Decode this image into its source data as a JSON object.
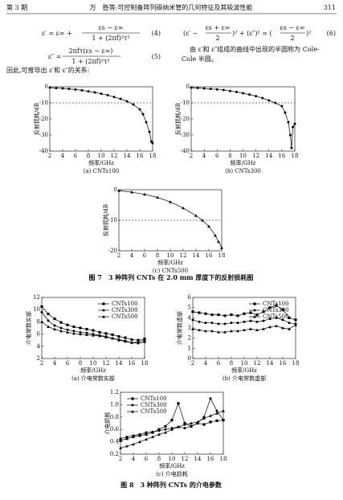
{
  "header": {
    "issue": "第 3 期",
    "title": "万　胜等:可控制备阵列碳纳米管的几何特征及其吸波性能",
    "page": "311"
  },
  "equations": [
    {
      "lhs": "ε′ = ε∞ +",
      "num": "εs − ε∞",
      "den": "1 + (2πf)²τ²",
      "label": "(4)"
    },
    {
      "lhs": "ε″ =",
      "num": "2πfτ(εs − ε∞)",
      "den": "1 + (2πf)²τ²",
      "label": "(5)"
    },
    {
      "open": "(ε′ −",
      "num1": "εs + ε∞",
      "den1": "2",
      "mid": ")² + (ε″)² = (",
      "num2": "εs − ε∞",
      "den2": "2",
      "close": ")²",
      "label": "(6)"
    }
  ],
  "text": {
    "right": [
      "由 ε′和 ε″组成的曲线中出现的半圆称为 Cole-",
      "Cole 半圆。"
    ],
    "left": "因此,可推导出 ε′和 ε″的关系:"
  },
  "figures": [
    {
      "caption": "图 7　3 种阵列 CNTs 在 2.0 mm 厚度下的反射损耗图",
      "charts": [
        {
          "type": "line",
          "color": "#000",
          "marker": "circle",
          "x": [
            2,
            3,
            4,
            5,
            6,
            7,
            8,
            9,
            10,
            11,
            12,
            13,
            14,
            15,
            16,
            16.5,
            17,
            17.5,
            17.8,
            18
          ],
          "values": [
            -0.5,
            -0.8,
            -1,
            -1.3,
            -1.7,
            -2.2,
            -2.8,
            -3.5,
            -4.3,
            -5.2,
            -6.3,
            -7.5,
            -9,
            -11,
            -14,
            -17,
            -22,
            -28,
            -34,
            -35
          ],
          "xlim": [
            2,
            18
          ],
          "xticks": [
            2,
            4,
            6,
            8,
            10,
            12,
            14,
            16,
            18
          ],
          "ylim": [
            -40,
            0
          ],
          "yticks": [
            0,
            -10,
            -20,
            -30,
            -40
          ],
          "hline": -10,
          "xlabel": "频率/GHz",
          "ylabel": "反射损耗/dB",
          "caption": "(a) CNTs100"
        },
        {
          "type": "line",
          "color": "#000",
          "marker": "circle",
          "x": [
            2,
            3,
            4,
            5,
            6,
            7,
            8,
            9,
            10,
            11,
            12,
            13,
            14,
            15,
            16,
            16.5,
            17,
            17.3,
            17.5,
            17.7,
            18
          ],
          "values": [
            -0.5,
            -0.7,
            -1,
            -1.3,
            -1.6,
            -2,
            -2.6,
            -3.2,
            -4,
            -4.8,
            -5.8,
            -7,
            -8.5,
            -10,
            -12,
            -16,
            -22,
            -30,
            -38,
            -25,
            -23
          ],
          "xlim": [
            2,
            18
          ],
          "xticks": [
            2,
            4,
            6,
            8,
            10,
            12,
            14,
            16,
            18
          ],
          "ylim": [
            -40,
            0
          ],
          "yticks": [
            0,
            -10,
            -20,
            -30,
            -40
          ],
          "hline": -10,
          "xlabel": "频率/GHz",
          "ylabel": "反射损耗/dB",
          "caption": "(b) CNTs300"
        },
        {
          "type": "line",
          "color": "#000",
          "marker": "triangle",
          "x": [
            2,
            4,
            6,
            8,
            10,
            12,
            14,
            15,
            16,
            17,
            17.5,
            18
          ],
          "values": [
            -0.3,
            -0.8,
            -1.5,
            -2.5,
            -4,
            -6,
            -8.5,
            -10,
            -12,
            -15,
            -17,
            -19
          ],
          "xlim": [
            2,
            18
          ],
          "xticks": [
            2,
            4,
            6,
            8,
            10,
            12,
            14,
            16,
            18
          ],
          "ylim": [
            -20,
            0
          ],
          "yticks": [
            0,
            -10,
            -20
          ],
          "hline": -10,
          "xlabel": "频率/GHz",
          "ylabel": "反射损耗/dB",
          "caption": "(c) CNTs500"
        }
      ]
    },
    {
      "caption": "图 8　3 种阵列 CNTs 的介电参数",
      "charts": [
        {
          "type": "line",
          "legend": "top-right",
          "x": [
            2,
            3,
            4,
            5,
            6,
            7,
            8,
            9,
            10,
            11,
            12,
            13,
            14,
            15,
            16,
            17,
            18
          ],
          "series": [
            {
              "name": "CNTs100",
              "color": "#000",
              "marker": "square",
              "values": [
                10.5,
                9.3,
                8.5,
                7.9,
                7.5,
                7.2,
                7.0,
                6.8,
                6.6,
                6.3,
                6.1,
                5.9,
                5.6,
                5.4,
                5.1,
                5.0,
                5.2
              ]
            },
            {
              "name": "CNTs300",
              "color": "#000",
              "marker": "circle",
              "values": [
                9.6,
                8.2,
                7.4,
                7.0,
                6.7,
                6.5,
                6.3,
                6.2,
                6.0,
                5.8,
                5.6,
                5.3,
                5.1,
                4.9,
                4.6,
                4.5,
                4.7
              ]
            },
            {
              "name": "CNTs500",
              "color": "#000",
              "marker": "triangle",
              "values": [
                8.0,
                7.2,
                6.8,
                6.5,
                6.3,
                6.1,
                6.0,
                5.9,
                5.8,
                5.7,
                5.5,
                5.3,
                5.0,
                4.8,
                4.6,
                4.7,
                5.0
              ]
            }
          ],
          "xlim": [
            2,
            18
          ],
          "xticks": [
            2,
            4,
            6,
            8,
            10,
            12,
            14,
            16,
            18
          ],
          "ylim": [
            2,
            12
          ],
          "yticks": [
            2,
            4,
            6,
            8,
            10,
            12
          ],
          "xlabel": "频率/GHz",
          "ylabel": "介电常数实部",
          "caption": "(a) 介电常数实部"
        },
        {
          "type": "line",
          "legend": "top-right",
          "x": [
            2,
            3,
            4,
            5,
            6,
            7,
            8,
            9,
            10,
            11,
            12,
            13,
            14,
            15,
            16,
            17,
            18
          ],
          "series": [
            {
              "name": "CNTs100",
              "color": "#000",
              "marker": "square",
              "values": [
                4.6,
                4.5,
                4.4,
                4.3,
                4.3,
                4.2,
                4.3,
                4.2,
                4.4,
                4.5,
                4.3,
                4.6,
                5.0,
                5.2,
                4.8,
                4.0,
                3.8
              ]
            },
            {
              "name": "CNTs300",
              "color": "#000",
              "marker": "circle",
              "values": [
                3.8,
                3.6,
                3.5,
                3.5,
                3.4,
                3.4,
                3.5,
                3.5,
                3.6,
                3.7,
                3.6,
                3.7,
                3.9,
                4.0,
                3.8,
                3.5,
                3.4
              ]
            },
            {
              "name": "CNTs500",
              "color": "#000",
              "marker": "triangle",
              "values": [
                2.9,
                2.8,
                2.7,
                2.7,
                2.6,
                2.6,
                2.7,
                2.7,
                2.8,
                2.9,
                2.8,
                2.9,
                3.1,
                3.2,
                3.0,
                2.9,
                3.3
              ]
            }
          ],
          "xlim": [
            2,
            18
          ],
          "xticks": [
            2,
            4,
            6,
            8,
            10,
            12,
            14,
            16,
            18
          ],
          "ylim": [
            0,
            6
          ],
          "yticks": [
            0,
            1,
            2,
            3,
            4,
            5,
            6
          ],
          "xlabel": "频率/GHz",
          "ylabel": "介电常数虚部",
          "caption": "(b) 介电常数虚部"
        },
        {
          "type": "line",
          "legend": "top-left",
          "x": [
            2,
            3,
            4,
            5,
            6,
            7,
            8,
            9,
            10,
            11,
            12,
            13,
            14,
            15,
            16,
            17,
            18
          ],
          "series": [
            {
              "name": "CNTs100",
              "color": "#000",
              "marker": "square",
              "values": [
                0.42,
                0.45,
                0.48,
                0.5,
                0.52,
                0.55,
                0.6,
                0.65,
                0.75,
                1.02,
                0.7,
                0.65,
                0.7,
                0.68,
                0.72,
                0.74,
                0.75
              ]
            },
            {
              "name": "CNTs300",
              "color": "#000",
              "marker": "circle",
              "values": [
                0.45,
                0.48,
                0.5,
                0.52,
                0.55,
                0.56,
                0.58,
                0.6,
                0.62,
                0.64,
                0.62,
                0.65,
                0.7,
                0.8,
                1.1,
                0.9,
                0.75
              ]
            },
            {
              "name": "CNTs500",
              "color": "#000",
              "marker": "triangle",
              "values": [
                0.3,
                0.33,
                0.36,
                0.4,
                0.44,
                0.48,
                0.52,
                0.55,
                0.6,
                0.64,
                0.68,
                0.7,
                0.72,
                0.78,
                0.82,
                0.86,
                0.9
              ]
            }
          ],
          "xlim": [
            2,
            18
          ],
          "xticks": [
            2,
            4,
            6,
            8,
            10,
            12,
            14,
            16,
            18
          ],
          "ylim": [
            0.2,
            1.2
          ],
          "yticks": [
            0.2,
            0.4,
            0.6,
            0.8,
            {
              "value": 1,
              "label": "1.0"
            },
            1.2
          ],
          "xlabel": "频率/GHz",
          "ylabel": "介电损耗",
          "caption": "(c) 介电损耗"
        }
      ]
    }
  ]
}
